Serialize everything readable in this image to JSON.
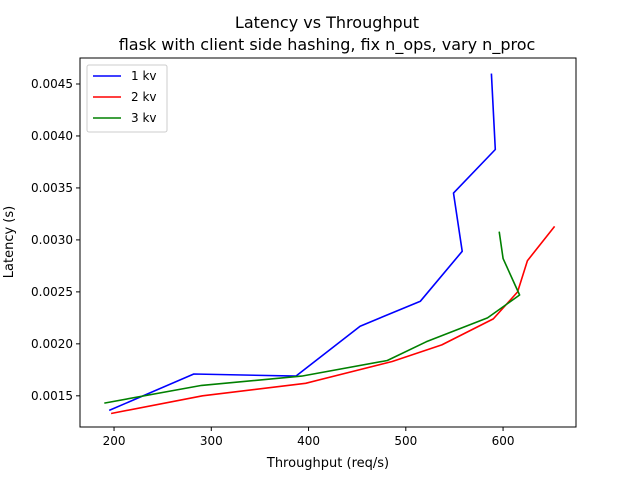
{
  "chart_data": {
    "type": "line",
    "title": "Latency vs Throughput",
    "subtitle": "flask with client side hashing, fix n_ops, vary n_proc",
    "xlabel": "Throughput (req/s)",
    "ylabel": "Latency (s)",
    "xlim": [
      165,
      675
    ],
    "ylim": [
      0.0012,
      0.00475
    ],
    "xticks": [
      200,
      300,
      400,
      500,
      600
    ],
    "xtick_labels": [
      "200",
      "300",
      "400",
      "500",
      "600"
    ],
    "yticks": [
      0.0015,
      0.002,
      0.0025,
      0.003,
      0.0035,
      0.004,
      0.0045
    ],
    "ytick_labels": [
      "0.0015",
      "0.0020",
      "0.0025",
      "0.0030",
      "0.0035",
      "0.0040",
      "0.0045"
    ],
    "grid": false,
    "legend_position": "top-left",
    "series": [
      {
        "name": "1 kv",
        "color": "#0000ff",
        "x": [
          195,
          282,
          387,
          453,
          515,
          558,
          549,
          592,
          588
        ],
        "y": [
          0.00136,
          0.00171,
          0.00169,
          0.00217,
          0.00241,
          0.00289,
          0.00345,
          0.00387,
          0.0046
        ]
      },
      {
        "name": "2 kv",
        "color": "#ff0000",
        "x": [
          197,
          291,
          397,
          486,
          537,
          590,
          615,
          625,
          653
        ],
        "y": [
          0.00133,
          0.0015,
          0.00162,
          0.00183,
          0.00199,
          0.00224,
          0.0025,
          0.0028,
          0.00313
        ]
      },
      {
        "name": "3 kv",
        "color": "#008000",
        "x": [
          190,
          290,
          393,
          481,
          521,
          584,
          617,
          600,
          596
        ],
        "y": [
          0.00143,
          0.0016,
          0.00169,
          0.00184,
          0.00202,
          0.00225,
          0.00247,
          0.00282,
          0.00308
        ]
      }
    ]
  }
}
